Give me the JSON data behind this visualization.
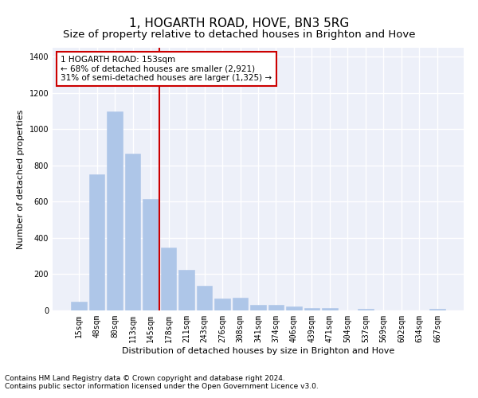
{
  "title": "1, HOGARTH ROAD, HOVE, BN3 5RG",
  "subtitle": "Size of property relative to detached houses in Brighton and Hove",
  "xlabel": "Distribution of detached houses by size in Brighton and Hove",
  "ylabel": "Number of detached properties",
  "categories": [
    "15sqm",
    "48sqm",
    "80sqm",
    "113sqm",
    "145sqm",
    "178sqm",
    "211sqm",
    "243sqm",
    "276sqm",
    "308sqm",
    "341sqm",
    "374sqm",
    "406sqm",
    "439sqm",
    "471sqm",
    "504sqm",
    "537sqm",
    "569sqm",
    "602sqm",
    "634sqm",
    "667sqm"
  ],
  "values": [
    50,
    750,
    1100,
    865,
    615,
    345,
    225,
    135,
    65,
    70,
    30,
    30,
    22,
    15,
    15,
    0,
    10,
    0,
    0,
    0,
    10
  ],
  "bar_color": "#aec6e8",
  "bar_edge_color": "#aec6e8",
  "vline_x": 4.5,
  "vline_color": "#cc0000",
  "annotation_line1": "1 HOGARTH ROAD: 153sqm",
  "annotation_line2": "← 68% of detached houses are smaller (2,921)",
  "annotation_line3": "31% of semi-detached houses are larger (1,325) →",
  "annotation_box_color": "#cc0000",
  "ylim": [
    0,
    1450
  ],
  "yticks": [
    0,
    200,
    400,
    600,
    800,
    1000,
    1200,
    1400
  ],
  "footer1": "Contains HM Land Registry data © Crown copyright and database right 2024.",
  "footer2": "Contains public sector information licensed under the Open Government Licence v3.0.",
  "bg_color": "#edf0f9",
  "grid_color": "#ffffff",
  "title_fontsize": 11,
  "subtitle_fontsize": 9.5,
  "label_fontsize": 8,
  "tick_fontsize": 7,
  "footer_fontsize": 6.5,
  "annot_fontsize": 7.5
}
